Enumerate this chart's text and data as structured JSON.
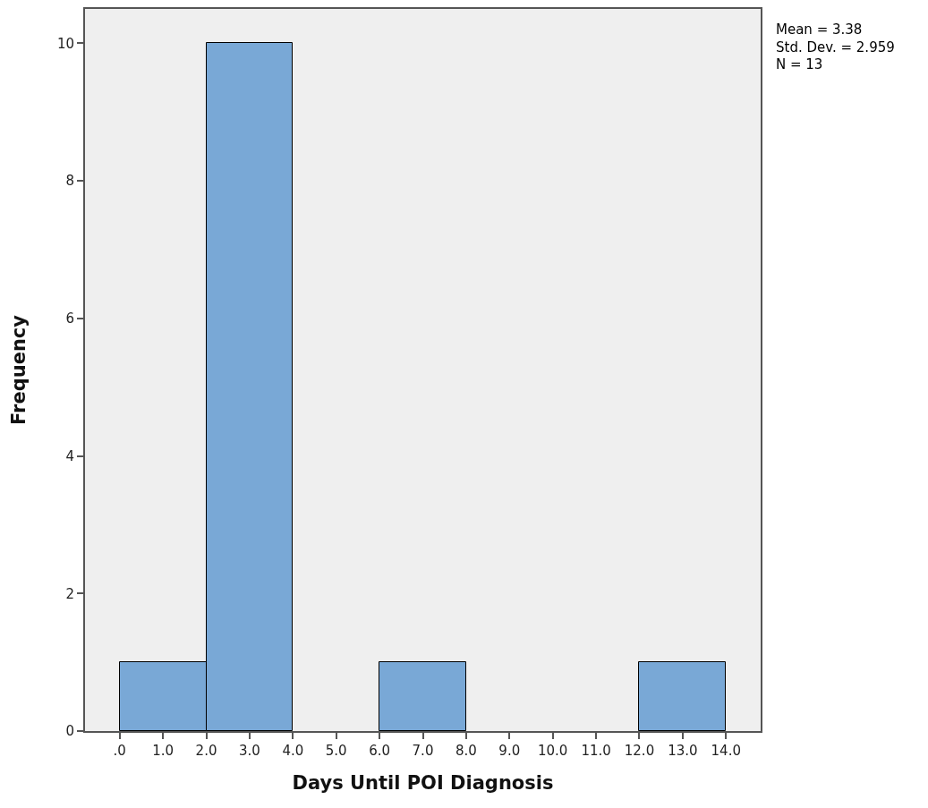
{
  "chart_data": {
    "type": "histogram",
    "xlabel": "Days Until POI Diagnosis",
    "ylabel": "Frequency",
    "bins": [
      0,
      2,
      4,
      6,
      8,
      10,
      12,
      14
    ],
    "values": [
      1,
      10,
      0,
      1,
      0,
      0,
      1
    ],
    "color": "#79a8d6",
    "xlim": [
      -0.8,
      14.8
    ],
    "xticks": [
      {
        "value": 0,
        "label": ".0"
      },
      {
        "value": 1,
        "label": "1.0"
      },
      {
        "value": 2,
        "label": "2.0"
      },
      {
        "value": 3,
        "label": "3.0"
      },
      {
        "value": 4,
        "label": "4.0"
      },
      {
        "value": 5,
        "label": "5.0"
      },
      {
        "value": 6,
        "label": "6.0"
      },
      {
        "value": 7,
        "label": "7.0"
      },
      {
        "value": 8,
        "label": "8.0"
      },
      {
        "value": 9,
        "label": "9.0"
      },
      {
        "value": 10,
        "label": "10.0"
      },
      {
        "value": 11,
        "label": "11.0"
      },
      {
        "value": 12,
        "label": "12.0"
      },
      {
        "value": 13,
        "label": "13.0"
      },
      {
        "value": 14,
        "label": "14.0"
      }
    ],
    "ylim": [
      0,
      10.5
    ],
    "yticks": [
      0,
      2,
      4,
      6,
      8,
      10
    ],
    "annotations": [
      "Mean = 3.38",
      "Std. Dev. = 2.959",
      "N = 13"
    ]
  }
}
